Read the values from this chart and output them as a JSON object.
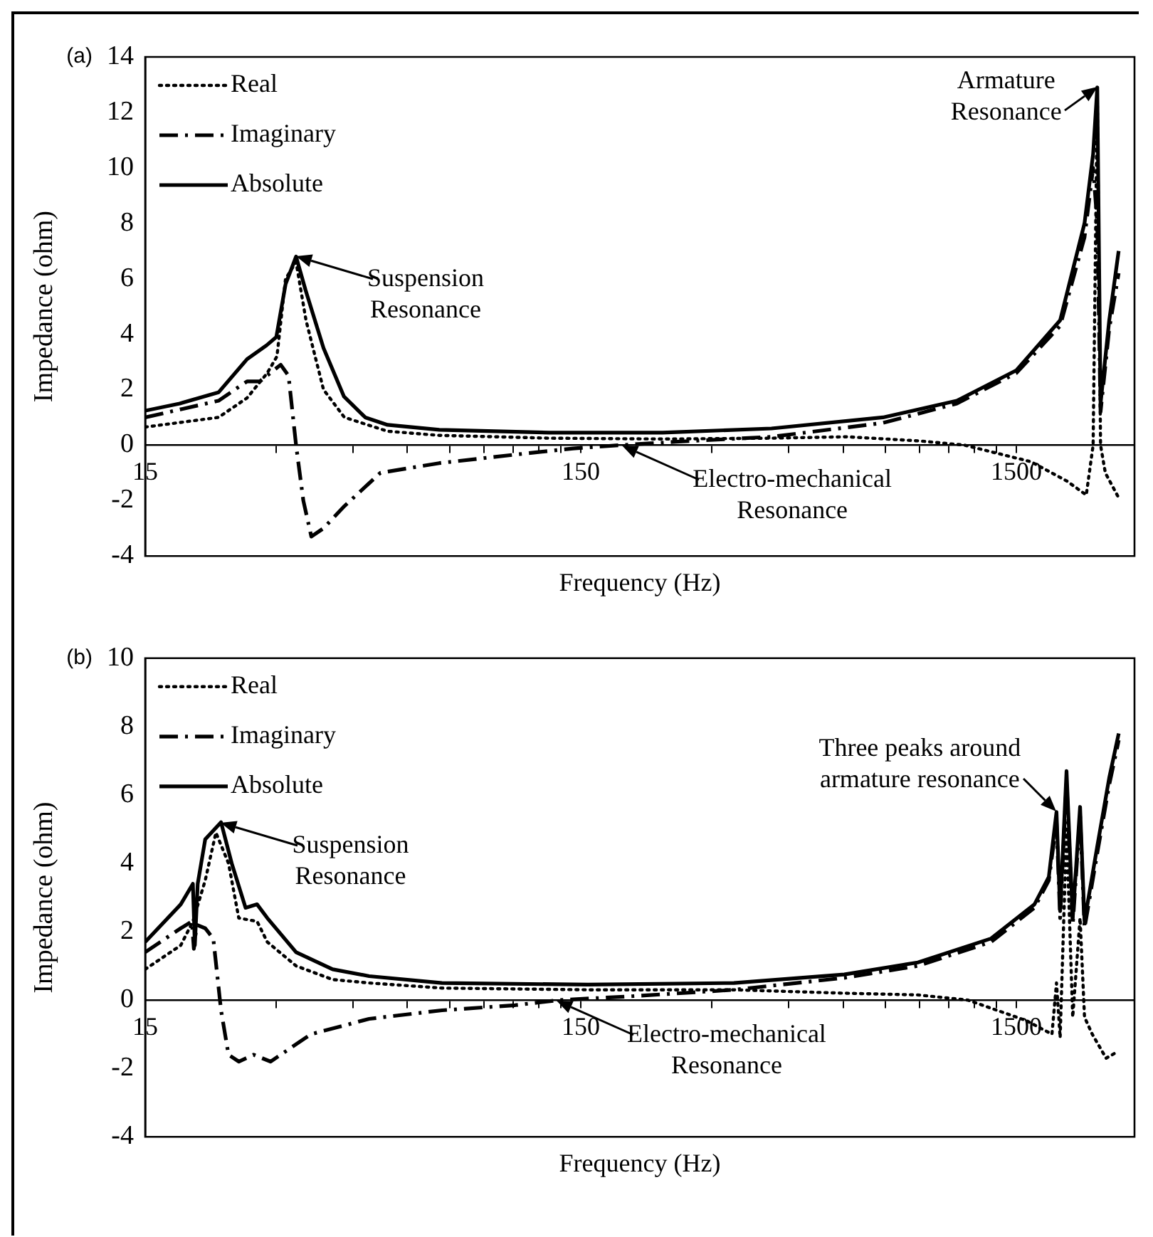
{
  "chart_data": [
    {
      "type": "line",
      "title": "(a)",
      "xlabel": "Frequency (Hz)",
      "ylabel": "Impedance (ohm)",
      "log": "x",
      "grid": false,
      "legend": "top left",
      "xlim": [
        15,
        2800
      ],
      "xticks": [
        15,
        {
          "value": 30,
          "label": null
        },
        {
          "value": 45,
          "label": null
        },
        {
          "value": 60,
          "label": null
        },
        {
          "value": 75,
          "label": null
        },
        {
          "value": 90,
          "label": null
        },
        {
          "value": 105,
          "label": null
        },
        {
          "value": 120,
          "label": null
        },
        {
          "value": 135,
          "label": null
        },
        150,
        {
          "value": 300,
          "label": null
        },
        {
          "value": 450,
          "label": null
        },
        {
          "value": 600,
          "label": null
        },
        {
          "value": 750,
          "label": null
        },
        {
          "value": 900,
          "label": null
        },
        {
          "value": 1050,
          "label": null
        },
        {
          "value": 1200,
          "label": null
        },
        {
          "value": 1350,
          "label": null
        },
        1500
      ],
      "ylim": [
        -4,
        14
      ],
      "yticks": [
        -4,
        -2,
        0,
        2,
        4,
        6,
        8,
        10,
        12,
        14
      ],
      "series": [
        {
          "name": "Real",
          "color": "#000000",
          "line_style": "dotted",
          "x": [
            15,
            22.1,
            25.7,
            28.6,
            30.1,
            31.5,
            33.3,
            35.1,
            38.5,
            43,
            54,
            71,
            127,
            231,
            411,
            613,
            900,
            1140,
            1620,
            1960,
            2170,
            2250,
            2300,
            2340,
            2400,
            2575
          ],
          "values": [
            0.65,
            1.0,
            1.7,
            2.6,
            3.2,
            6.0,
            6.6,
            4.5,
            2.0,
            1.0,
            0.5,
            0.35,
            0.25,
            0.22,
            0.25,
            0.3,
            0.15,
            0,
            -0.6,
            -1.3,
            -1.8,
            0,
            12.7,
            0,
            -1.0,
            -1.9
          ]
        },
        {
          "name": "Imaginary",
          "color": "#000000",
          "line_style": "dashed",
          "x": [
            15,
            22.1,
            25.7,
            27.5,
            30.7,
            32,
            33.3,
            34.6,
            36.1,
            38.5,
            43,
            52,
            71,
            105,
            144,
            186,
            248,
            411,
            741,
            1095,
            1500,
            1890,
            2150,
            2250,
            2300,
            2340,
            2450,
            2575
          ],
          "values": [
            1.0,
            1.6,
            2.3,
            2.3,
            2.9,
            2.5,
            0,
            -2.0,
            -3.3,
            -3.0,
            -2.2,
            -1.0,
            -0.65,
            -0.35,
            -0.12,
            0,
            0.12,
            0.3,
            0.8,
            1.5,
            2.6,
            4.3,
            7.5,
            10,
            8,
            1.2,
            4.2,
            6.2
          ]
        },
        {
          "name": "Absolute",
          "color": "#000000",
          "line_style": "solid",
          "x": [
            15,
            18,
            22.1,
            25.7,
            28.5,
            30,
            31.5,
            33.3,
            35,
            38.5,
            42.9,
            48,
            54,
            71,
            127,
            231,
            411,
            741,
            1095,
            1500,
            1890,
            2150,
            2250,
            2300,
            2340,
            2450,
            2575
          ],
          "values": [
            1.24,
            1.5,
            1.9,
            3.1,
            3.6,
            3.9,
            5.8,
            6.8,
            5.6,
            3.5,
            1.75,
            1.0,
            0.73,
            0.55,
            0.45,
            0.45,
            0.6,
            1.0,
            1.6,
            2.7,
            4.5,
            8,
            10.5,
            12.9,
            1.5,
            4.5,
            7.0
          ]
        }
      ],
      "annotations": [
        {
          "text": "Suspension Resonance",
          "x": 33.3,
          "y": 6.8
        },
        {
          "text": "Armature Resonance",
          "x": 2300,
          "y": 12.9
        },
        {
          "text": "Electro-mechanical Resonance",
          "x": 186,
          "y": 0
        }
      ]
    },
    {
      "type": "line",
      "title": "(b)",
      "xlabel": "Frequency  (Hz)",
      "ylabel": "Impedance (ohm)",
      "log": "x",
      "grid": false,
      "legend": "top left",
      "xlim": [
        15,
        2800
      ],
      "xticks": [
        15,
        {
          "value": 30,
          "label": null
        },
        {
          "value": 45,
          "label": null
        },
        {
          "value": 60,
          "label": null
        },
        {
          "value": 75,
          "label": null
        },
        {
          "value": 90,
          "label": null
        },
        {
          "value": 105,
          "label": null
        },
        {
          "value": 120,
          "label": null
        },
        {
          "value": 135,
          "label": null
        },
        150,
        {
          "value": 300,
          "label": null
        },
        {
          "value": 450,
          "label": null
        },
        {
          "value": 600,
          "label": null
        },
        {
          "value": 750,
          "label": null
        },
        {
          "value": 900,
          "label": null
        },
        {
          "value": 1050,
          "label": null
        },
        {
          "value": 1200,
          "label": null
        },
        {
          "value": 1350,
          "label": null
        },
        1500
      ],
      "ylim": [
        -4,
        10
      ],
      "yticks": [
        -4,
        -2,
        0,
        2,
        4,
        6,
        8,
        10
      ],
      "series": [
        {
          "name": "Real",
          "color": "#000000",
          "line_style": "dotted",
          "x": [
            15,
            18.1,
            19.3,
            20.6,
            21.8,
            23.3,
            24.6,
            27.1,
            28.6,
            33.3,
            40.4,
            49,
            72,
            156,
            337,
            604,
            891,
            1160,
            1580,
            1810,
            1854,
            1890,
            1955,
            2020,
            2100,
            2150,
            2240,
            2410,
            2570
          ],
          "values": [
            0.9,
            1.6,
            2.3,
            3.5,
            4.9,
            4.0,
            2.4,
            2.3,
            1.7,
            1.0,
            0.6,
            0.5,
            0.35,
            0.3,
            0.3,
            0.2,
            0.15,
            0,
            -0.6,
            -1.0,
            0.5,
            -1.1,
            5.0,
            -0.5,
            2.4,
            -0.5,
            -1.0,
            -1.7,
            -1.5
          ]
        },
        {
          "name": "Imaginary",
          "color": "#000000",
          "line_style": "dashed",
          "x": [
            15,
            18.1,
            19.2,
            19.4,
            19.7,
            20.6,
            21.5,
            22.4,
            23.3,
            24.6,
            26.6,
            29.1,
            36,
            49,
            72,
            106,
            134,
            190,
            337,
            604,
            891,
            1312,
            1650,
            1780,
            1854,
            1890,
            1955,
            2020,
            2100,
            2150,
            2300,
            2450,
            2576
          ],
          "values": [
            1.4,
            2.1,
            2.3,
            1.5,
            2.2,
            2.1,
            1.8,
            -0.3,
            -1.6,
            -1.8,
            -1.6,
            -1.8,
            -1.0,
            -0.55,
            -0.3,
            -0.15,
            0,
            0.1,
            0.3,
            0.65,
            1.0,
            1.7,
            2.7,
            3.5,
            5.2,
            2.4,
            6.4,
            2.2,
            5.4,
            2.1,
            4.3,
            6.3,
            7.6
          ]
        },
        {
          "name": "Absolute",
          "color": "#000000",
          "line_style": "solid",
          "x": [
            15,
            18.1,
            19.3,
            19.5,
            19.8,
            20.6,
            22.4,
            23.7,
            25.5,
            27.1,
            28.6,
            33.3,
            40.4,
            49,
            72,
            156,
            337,
            604,
            891,
            1312,
            1650,
            1780,
            1854,
            1890,
            1955,
            2020,
            2100,
            2150,
            2300,
            2450,
            2576
          ],
          "values": [
            1.7,
            2.8,
            3.4,
            1.6,
            3.4,
            4.7,
            5.2,
            4.0,
            2.7,
            2.8,
            2.4,
            1.4,
            0.9,
            0.7,
            0.5,
            0.45,
            0.5,
            0.75,
            1.1,
            1.8,
            2.8,
            3.6,
            5.5,
            2.6,
            6.7,
            2.4,
            5.65,
            2.3,
            4.5,
            6.5,
            7.8
          ]
        }
      ],
      "annotations": [
        {
          "text": "Suspension Resonance",
          "x": 22.4,
          "y": 5.2
        },
        {
          "text": "Three peaks around armature resonance",
          "x": 1854,
          "y": 5.5
        },
        {
          "text": "Electro-mechanical Resonance",
          "x": 131.5,
          "y": 0
        }
      ]
    }
  ]
}
